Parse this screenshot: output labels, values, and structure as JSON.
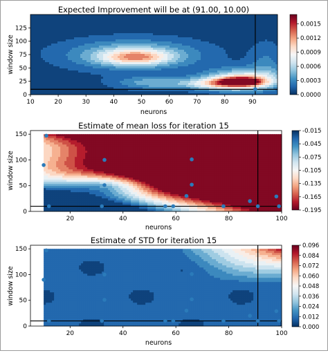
{
  "chart_data": [
    {
      "type": "heatmap",
      "subtype": "filled-contour",
      "title": "Expected Improvement will be at (91.00, 10.00)",
      "xlabel": "neurons",
      "ylabel": "window size",
      "xlim": [
        10,
        99
      ],
      "ylim": [
        0,
        150
      ],
      "xticks": [
        10,
        20,
        30,
        40,
        50,
        60,
        70,
        80,
        90
      ],
      "yticks": [
        0,
        25,
        50,
        75,
        100,
        125
      ],
      "colormap": "RdBu_r",
      "colorbar": {
        "min": 0.0,
        "max": 0.0017,
        "ticks": [
          "0.0000",
          "0.0003",
          "0.0006",
          "0.0009",
          "0.0012",
          "0.0015"
        ],
        "tick_values": [
          0.0,
          0.0003,
          0.0006,
          0.0009,
          0.0012,
          0.0015
        ]
      },
      "vline_x": 91,
      "hline_y": 10,
      "points": [
        {
          "x": 91,
          "y": 10
        }
      ],
      "blobs": [
        {
          "x": 47,
          "y": 75,
          "rx": 24,
          "ry": 28,
          "v": 0.0005
        },
        {
          "x": 48,
          "y": 70,
          "rx": 12,
          "ry": 14,
          "v": 0.0008
        },
        {
          "x": 55,
          "y": 22,
          "rx": 14,
          "ry": 12,
          "v": 0.0004
        },
        {
          "x": 87,
          "y": 28,
          "rx": 14,
          "ry": 20,
          "v": 0.0008
        },
        {
          "x": 86,
          "y": 24,
          "rx": 8,
          "ry": 9,
          "v": 0.0013
        },
        {
          "x": 76,
          "y": 20,
          "rx": 10,
          "ry": 10,
          "v": 0.0006
        },
        {
          "x": 95,
          "y": 60,
          "rx": 6,
          "ry": 40,
          "v": 0.0002
        }
      ]
    },
    {
      "type": "heatmap",
      "subtype": "filled-contour",
      "title": "Estimate of mean loss for iteration 15",
      "xlabel": "neurons",
      "ylabel": "window size",
      "xlim": [
        5,
        100
      ],
      "ylim": [
        0,
        157
      ],
      "xticks": [
        20,
        40,
        60,
        80,
        100
      ],
      "yticks": [
        0,
        50,
        100,
        150
      ],
      "colormap": "RdBu",
      "colorbar": {
        "min": -0.195,
        "max": -0.015,
        "ticks": [
          "-0.015",
          "-0.045",
          "-0.075",
          "-0.105",
          "-0.135",
          "-0.165",
          "-0.195"
        ],
        "tick_values": [
          -0.015,
          -0.045,
          -0.075,
          -0.105,
          -0.135,
          -0.165,
          -0.195
        ]
      },
      "vline_x": 91,
      "hline_y": 10,
      "points": [
        {
          "x": 11,
          "y": 147
        },
        {
          "x": 10,
          "y": 90
        },
        {
          "x": 12,
          "y": 10
        },
        {
          "x": 33,
          "y": 100
        },
        {
          "x": 33,
          "y": 51
        },
        {
          "x": 32,
          "y": 10
        },
        {
          "x": 56,
          "y": 10
        },
        {
          "x": 59,
          "y": 10
        },
        {
          "x": 64,
          "y": 30
        },
        {
          "x": 66,
          "y": 101
        },
        {
          "x": 66,
          "y": 52
        },
        {
          "x": 78,
          "y": 10
        },
        {
          "x": 88,
          "y": 20
        },
        {
          "x": 91,
          "y": 10
        },
        {
          "x": 98,
          "y": 29
        },
        {
          "x": 99,
          "y": 10
        }
      ]
    },
    {
      "type": "heatmap",
      "subtype": "filled-contour",
      "title": "Estimate of STD for iteration 15",
      "xlabel": "neurons",
      "ylabel": "window size",
      "xlim": [
        5,
        100
      ],
      "ylim": [
        0,
        157
      ],
      "xticks": [
        20,
        40,
        60,
        80,
        100
      ],
      "yticks": [
        0,
        50,
        100,
        150
      ],
      "colormap": "RdBu_r",
      "colorbar": {
        "min": 0.0,
        "max": 0.096,
        "ticks": [
          "0.096",
          "0.084",
          "0.072",
          "0.060",
          "0.048",
          "0.036",
          "0.024",
          "0.012",
          "0.000"
        ],
        "tick_values": [
          0.096,
          0.084,
          0.072,
          0.06,
          0.048,
          0.036,
          0.024,
          0.012,
          0.0
        ]
      },
      "vline_x": 91,
      "hline_y": 10,
      "points": [
        {
          "x": 11,
          "y": 147
        },
        {
          "x": 10,
          "y": 90
        },
        {
          "x": 12,
          "y": 10
        },
        {
          "x": 33,
          "y": 100
        },
        {
          "x": 33,
          "y": 51
        },
        {
          "x": 32,
          "y": 10
        },
        {
          "x": 56,
          "y": 10
        },
        {
          "x": 59,
          "y": 10
        },
        {
          "x": 64,
          "y": 30
        },
        {
          "x": 66,
          "y": 101
        },
        {
          "x": 66,
          "y": 52
        },
        {
          "x": 78,
          "y": 10
        },
        {
          "x": 88,
          "y": 20
        },
        {
          "x": 91,
          "y": 10
        },
        {
          "x": 98,
          "y": 29
        },
        {
          "x": 99,
          "y": 10
        }
      ]
    }
  ]
}
